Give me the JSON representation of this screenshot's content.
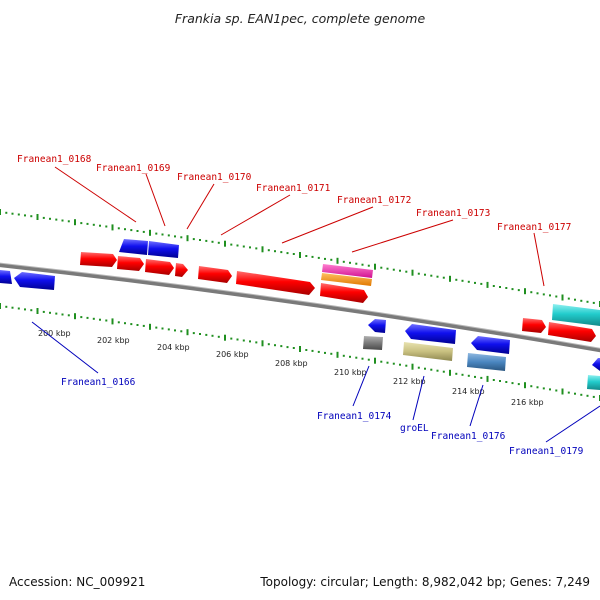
{
  "title": "Frankia sp. EAN1pec, complete genome",
  "accession": "Accession: NC_009921",
  "topology": "Topology: circular; Length: 8,982,042 bp; Genes: 7,249",
  "colors": {
    "background": "#ffffff",
    "backbone": "#7a7a7a",
    "tick_green": "#1f8f1f",
    "label_red": "#cc0000",
    "label_blue": "#0000bb",
    "red": "#ff0000",
    "blue": "#1010ee",
    "cyan": "#22cccc",
    "magenta": "#ee22aa",
    "orange": "#ff9900",
    "gray": "#888888",
    "khaki": "#c8c080",
    "steelblue": "#4a86c0"
  },
  "scale_labels": [
    "200 kbp",
    "202 kbp",
    "204 kbp",
    "206 kbp",
    "208 kbp",
    "210 kbp",
    "212 kbp",
    "214 kbp",
    "216 kbp"
  ],
  "gene_labels_top": [
    "Franean1_0168",
    "Franean1_0169",
    "Franean1_0170",
    "Franean1_0171",
    "Franean1_0172",
    "Franean1_0173",
    "Franean1_0177"
  ],
  "gene_labels_bottom": [
    "Franean1_0166",
    "Franean1_0174",
    "groEL",
    "Franean1_0176",
    "Franean1_0179"
  ],
  "features": [
    {
      "kind": "arrow",
      "color": "red"
    },
    {
      "kind": "arrow",
      "color": "blue"
    },
    {
      "kind": "box",
      "color": "cyan"
    },
    {
      "kind": "box",
      "color": "magenta"
    },
    {
      "kind": "box",
      "color": "orange"
    },
    {
      "kind": "box",
      "color": "gray"
    },
    {
      "kind": "box",
      "color": "khaki"
    },
    {
      "kind": "box",
      "color": "steelblue"
    }
  ]
}
